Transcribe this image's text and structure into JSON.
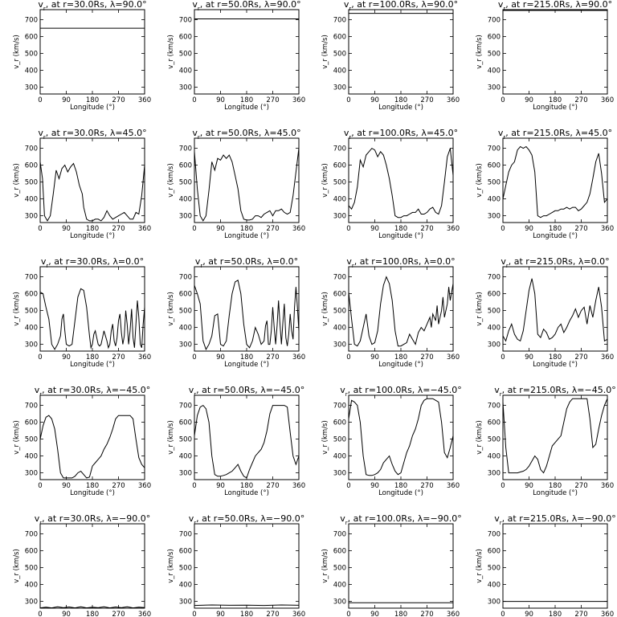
{
  "panel_defaults": {
    "xlabel": "Longitude (°)",
    "ylabel": "v_r (km/s)",
    "xlim": [
      0,
      360
    ],
    "ylim": [
      260,
      760
    ],
    "xticks": [
      0,
      90,
      180,
      270,
      360
    ],
    "yticks": [
      300,
      400,
      500,
      600,
      700
    ]
  },
  "chart_data": [
    {
      "type": "line",
      "title": "vr at r=30.0Rs, λ=90.0°",
      "x": [
        0,
        360
      ],
      "y": [
        650,
        650
      ]
    },
    {
      "type": "line",
      "title": "vr at r=50.0Rs, λ=90.0°",
      "x": [
        0,
        360
      ],
      "y": [
        705,
        705
      ]
    },
    {
      "type": "line",
      "title": "vr at r=100.0Rs, λ=90.0°",
      "x": [
        0,
        360
      ],
      "y": [
        738,
        738
      ]
    },
    {
      "type": "line",
      "title": "vr at r=215.0Rs, λ=90.0°",
      "x": [
        0,
        360
      ],
      "y": [
        755,
        755
      ]
    },
    {
      "type": "line",
      "title": "vr at r=30.0Rs, λ=45.0°",
      "x": [
        0,
        8,
        15,
        25,
        35,
        45,
        55,
        65,
        75,
        85,
        95,
        105,
        115,
        125,
        135,
        145,
        150,
        160,
        170,
        180,
        190,
        200,
        210,
        220,
        230,
        240,
        250,
        260,
        270,
        280,
        290,
        300,
        310,
        320,
        330,
        340,
        350,
        360
      ],
      "y": [
        620,
        520,
        300,
        270,
        300,
        430,
        570,
        520,
        580,
        600,
        560,
        590,
        610,
        560,
        480,
        430,
        350,
        280,
        270,
        270,
        280,
        280,
        270,
        290,
        330,
        300,
        280,
        290,
        300,
        310,
        320,
        300,
        280,
        280,
        320,
        310,
        420,
        600
      ]
    },
    {
      "type": "line",
      "title": "vr at r=50.0Rs, λ=45.0°",
      "x": [
        0,
        10,
        20,
        30,
        40,
        50,
        60,
        70,
        80,
        90,
        100,
        110,
        120,
        130,
        140,
        150,
        160,
        170,
        180,
        190,
        200,
        210,
        220,
        230,
        240,
        250,
        260,
        270,
        280,
        290,
        300,
        310,
        320,
        330,
        340,
        350,
        360
      ],
      "y": [
        680,
        460,
        300,
        270,
        300,
        450,
        620,
        570,
        640,
        630,
        660,
        640,
        660,
        620,
        540,
        460,
        330,
        280,
        275,
        275,
        280,
        300,
        300,
        290,
        310,
        320,
        330,
        300,
        330,
        330,
        340,
        320,
        310,
        320,
        420,
        560,
        700
      ]
    },
    {
      "type": "line",
      "title": "vr at r=100.0Rs, λ=45.0°",
      "x": [
        0,
        10,
        20,
        30,
        40,
        50,
        60,
        70,
        80,
        90,
        100,
        110,
        120,
        130,
        140,
        150,
        160,
        170,
        180,
        190,
        200,
        210,
        220,
        230,
        240,
        250,
        260,
        270,
        280,
        290,
        300,
        310,
        320,
        330,
        340,
        350,
        360
      ],
      "y": [
        360,
        340,
        380,
        470,
        630,
        590,
        660,
        680,
        700,
        690,
        650,
        680,
        660,
        600,
        520,
        420,
        300,
        290,
        290,
        300,
        300,
        310,
        320,
        320,
        340,
        310,
        310,
        320,
        340,
        350,
        320,
        310,
        360,
        500,
        650,
        700,
        540
      ]
    },
    {
      "type": "line",
      "title": "vr at r=215.0Rs, λ=45.0°",
      "x": [
        0,
        10,
        20,
        30,
        40,
        50,
        60,
        70,
        80,
        90,
        100,
        110,
        120,
        130,
        140,
        150,
        160,
        170,
        180,
        190,
        200,
        210,
        220,
        230,
        240,
        250,
        260,
        270,
        280,
        290,
        300,
        310,
        320,
        330,
        340,
        350,
        360
      ],
      "y": [
        400,
        480,
        560,
        600,
        620,
        690,
        710,
        700,
        710,
        690,
        660,
        560,
        300,
        290,
        300,
        300,
        310,
        320,
        330,
        330,
        340,
        340,
        350,
        340,
        350,
        350,
        330,
        340,
        360,
        380,
        430,
        520,
        620,
        670,
        550,
        380,
        400
      ]
    },
    {
      "type": "line",
      "title": "vr at r=30.0Rs, λ=0.0°",
      "x": [
        0,
        10,
        20,
        30,
        40,
        50,
        60,
        70,
        75,
        80,
        85,
        90,
        100,
        110,
        120,
        130,
        140,
        150,
        160,
        170,
        175,
        180,
        185,
        190,
        200,
        205,
        210,
        215,
        220,
        230,
        235,
        240,
        245,
        250,
        255,
        260,
        265,
        270,
        275,
        280,
        285,
        290,
        295,
        300,
        305,
        310,
        315,
        320,
        325,
        330,
        335,
        340,
        345,
        350,
        355,
        360
      ],
      "y": [
        610,
        600,
        520,
        450,
        300,
        270,
        300,
        350,
        450,
        480,
        380,
        300,
        290,
        300,
        440,
        580,
        630,
        620,
        520,
        350,
        280,
        300,
        360,
        380,
        300,
        290,
        300,
        340,
        380,
        320,
        280,
        300,
        380,
        420,
        320,
        290,
        340,
        440,
        480,
        370,
        300,
        350,
        500,
        420,
        300,
        380,
        510,
        340,
        280,
        420,
        560,
        460,
        300,
        280,
        420,
        520
      ]
    },
    {
      "type": "line",
      "title": "vr at r=50.0Rs, λ=0.0°",
      "x": [
        0,
        10,
        20,
        30,
        40,
        50,
        60,
        70,
        80,
        90,
        100,
        110,
        120,
        130,
        140,
        150,
        160,
        170,
        180,
        190,
        200,
        210,
        220,
        230,
        240,
        245,
        250,
        255,
        260,
        265,
        270,
        275,
        280,
        285,
        290,
        295,
        300,
        305,
        310,
        315,
        320,
        325,
        330,
        335,
        340,
        345,
        350,
        355,
        360
      ],
      "y": [
        650,
        600,
        540,
        320,
        270,
        300,
        350,
        470,
        480,
        300,
        290,
        320,
        470,
        600,
        670,
        680,
        600,
        420,
        300,
        280,
        320,
        400,
        360,
        300,
        320,
        410,
        440,
        300,
        300,
        380,
        520,
        400,
        300,
        410,
        560,
        420,
        300,
        430,
        540,
        340,
        290,
        360,
        480,
        380,
        330,
        520,
        640,
        520,
        380
      ]
    },
    {
      "type": "line",
      "title": "vr at r=100.0Rs, λ=0.0°",
      "x": [
        0,
        10,
        20,
        30,
        40,
        50,
        60,
        70,
        80,
        90,
        100,
        110,
        120,
        130,
        140,
        150,
        160,
        170,
        180,
        190,
        200,
        210,
        220,
        230,
        240,
        250,
        260,
        270,
        280,
        285,
        290,
        300,
        305,
        310,
        320,
        325,
        330,
        340,
        345,
        350,
        360
      ],
      "y": [
        610,
        450,
        300,
        290,
        320,
        400,
        480,
        350,
        300,
        310,
        380,
        540,
        650,
        700,
        660,
        560,
        380,
        290,
        290,
        300,
        310,
        360,
        330,
        300,
        370,
        400,
        380,
        420,
        460,
        400,
        480,
        440,
        530,
        420,
        500,
        580,
        460,
        540,
        640,
        560,
        660
      ]
    },
    {
      "type": "line",
      "title": "vr at r=215.0Rs, λ=0.0°",
      "x": [
        0,
        10,
        20,
        30,
        40,
        50,
        60,
        70,
        80,
        90,
        100,
        110,
        120,
        130,
        140,
        150,
        160,
        170,
        180,
        190,
        200,
        210,
        220,
        230,
        240,
        250,
        260,
        270,
        280,
        290,
        300,
        310,
        320,
        330,
        340,
        350,
        360
      ],
      "y": [
        350,
        320,
        380,
        420,
        360,
        330,
        320,
        380,
        500,
        620,
        690,
        600,
        360,
        340,
        390,
        370,
        330,
        340,
        360,
        400,
        420,
        370,
        400,
        440,
        470,
        510,
        460,
        500,
        520,
        420,
        530,
        460,
        560,
        640,
        520,
        320,
        330
      ]
    },
    {
      "type": "line",
      "title": "vr at r=30.0Rs, λ=-45.0°",
      "x": [
        0,
        10,
        20,
        30,
        40,
        50,
        60,
        70,
        80,
        90,
        100,
        110,
        120,
        130,
        140,
        150,
        160,
        170,
        180,
        190,
        200,
        210,
        220,
        230,
        240,
        250,
        260,
        270,
        280,
        290,
        300,
        310,
        320,
        330,
        340,
        350,
        360
      ],
      "y": [
        500,
        580,
        630,
        640,
        620,
        560,
        440,
        300,
        270,
        270,
        270,
        270,
        280,
        300,
        310,
        290,
        270,
        275,
        340,
        360,
        380,
        400,
        440,
        470,
        510,
        560,
        620,
        640,
        640,
        640,
        640,
        640,
        620,
        500,
        390,
        350,
        330
      ]
    },
    {
      "type": "line",
      "title": "vr at r=50.0Rs, λ=-45.0°",
      "x": [
        0,
        10,
        20,
        30,
        40,
        50,
        60,
        70,
        80,
        90,
        100,
        110,
        120,
        130,
        140,
        150,
        160,
        170,
        180,
        190,
        200,
        210,
        220,
        230,
        240,
        250,
        260,
        270,
        280,
        290,
        300,
        310,
        320,
        330,
        340,
        350,
        360
      ],
      "y": [
        520,
        640,
        690,
        700,
        680,
        600,
        400,
        290,
        280,
        280,
        285,
        290,
        300,
        310,
        330,
        350,
        310,
        280,
        270,
        320,
        360,
        400,
        420,
        440,
        480,
        550,
        650,
        700,
        700,
        700,
        700,
        700,
        690,
        540,
        400,
        350,
        400
      ]
    },
    {
      "type": "line",
      "title": "vr at r=100.0Rs, λ=-45.0°",
      "x": [
        0,
        10,
        20,
        30,
        40,
        50,
        60,
        70,
        80,
        90,
        100,
        110,
        120,
        130,
        140,
        150,
        160,
        170,
        180,
        190,
        200,
        210,
        220,
        230,
        240,
        250,
        260,
        270,
        280,
        290,
        300,
        310,
        320,
        330,
        340,
        350,
        360
      ],
      "y": [
        620,
        730,
        720,
        700,
        600,
        400,
        290,
        285,
        285,
        290,
        300,
        320,
        360,
        380,
        400,
        350,
        310,
        290,
        300,
        360,
        420,
        460,
        520,
        560,
        620,
        700,
        730,
        740,
        740,
        740,
        730,
        720,
        600,
        420,
        390,
        450,
        520
      ]
    },
    {
      "type": "line",
      "title": "vr at r=215.0Rs, λ=-45.0°",
      "x": [
        0,
        10,
        20,
        30,
        40,
        50,
        60,
        70,
        80,
        90,
        100,
        110,
        120,
        130,
        140,
        150,
        160,
        170,
        180,
        190,
        200,
        210,
        220,
        230,
        240,
        250,
        260,
        270,
        280,
        290,
        300,
        310,
        320,
        330,
        340,
        350,
        360
      ],
      "y": [
        720,
        450,
        300,
        300,
        300,
        300,
        305,
        310,
        320,
        340,
        370,
        400,
        380,
        320,
        300,
        340,
        400,
        460,
        480,
        500,
        520,
        600,
        680,
        720,
        740,
        740,
        740,
        740,
        740,
        740,
        620,
        450,
        470,
        560,
        640,
        700,
        740
      ]
    },
    {
      "type": "line",
      "title": "vr at r=30.0Rs, λ=-90.0°",
      "x": [
        0,
        20,
        40,
        60,
        80,
        100,
        120,
        140,
        160,
        180,
        200,
        220,
        240,
        260,
        280,
        300,
        320,
        340,
        360
      ],
      "y": [
        262,
        266,
        262,
        268,
        263,
        267,
        262,
        268,
        262,
        266,
        263,
        268,
        262,
        267,
        263,
        268,
        262,
        266,
        264
      ]
    },
    {
      "type": "line",
      "title": "vr at r=50.0Rs, λ=-90.0°",
      "x": [
        0,
        60,
        120,
        180,
        240,
        300,
        360
      ],
      "y": [
        276,
        279,
        277,
        278,
        276,
        279,
        277
      ]
    },
    {
      "type": "line",
      "title": "vr at r=100.0Rs, λ=-90.0°",
      "x": [
        0,
        360
      ],
      "y": [
        292,
        292
      ]
    },
    {
      "type": "line",
      "title": "vr at r=215.0Rs, λ=-90.0°",
      "x": [
        0,
        360
      ],
      "y": [
        300,
        300
      ]
    }
  ],
  "panels": [
    {
      "title_pre": "v",
      "title_sub": "r",
      "title_post": ", at r=30.0Rs,  λ=90.0°"
    },
    {
      "title_pre": "v",
      "title_sub": "r",
      "title_post": ", at r=50.0Rs,  λ=90.0°"
    },
    {
      "title_pre": "v",
      "title_sub": "r",
      "title_post": ", at r=100.0Rs,  λ=90.0°"
    },
    {
      "title_pre": "v",
      "title_sub": "r",
      "title_post": ", at r=215.0Rs,  λ=90.0°"
    },
    {
      "title_pre": "v",
      "title_sub": "r",
      "title_post": ", at r=30.0Rs,  λ=45.0°"
    },
    {
      "title_pre": "v",
      "title_sub": "r",
      "title_post": ", at r=50.0Rs,  λ=45.0°"
    },
    {
      "title_pre": "v",
      "title_sub": "r",
      "title_post": ", at r=100.0Rs,  λ=45.0°"
    },
    {
      "title_pre": "v",
      "title_sub": "r",
      "title_post": ", at r=215.0Rs,  λ=45.0°"
    },
    {
      "title_pre": "v",
      "title_sub": "r",
      "title_post": ", at r=30.0Rs,  λ=0.0°"
    },
    {
      "title_pre": "v",
      "title_sub": "r",
      "title_post": ", at r=50.0Rs,  λ=0.0°"
    },
    {
      "title_pre": "v",
      "title_sub": "r",
      "title_post": ", at r=100.0Rs,  λ=0.0°"
    },
    {
      "title_pre": "v",
      "title_sub": "r",
      "title_post": ", at r=215.0Rs,  λ=0.0°"
    },
    {
      "title_pre": "v",
      "title_sub": "r",
      "title_post": ", at r=30.0Rs,  λ=−45.0°"
    },
    {
      "title_pre": "v",
      "title_sub": "r",
      "title_post": ", at r=50.0Rs,  λ=−45.0°"
    },
    {
      "title_pre": "v",
      "title_sub": "r",
      "title_post": ", at r=100.0Rs,  λ=−45.0°"
    },
    {
      "title_pre": "v",
      "title_sub": "r",
      "title_post": ", at r=215.0Rs,  λ=−45.0°"
    },
    {
      "title_pre": "v",
      "title_sub": "r",
      "title_post": ", at r=30.0Rs,  λ=−90.0°"
    },
    {
      "title_pre": "v",
      "title_sub": "r",
      "title_post": ", at r=50.0Rs,  λ=−90.0°"
    },
    {
      "title_pre": "v",
      "title_sub": "r",
      "title_post": ", at r=100.0Rs,  λ=−90.0°"
    },
    {
      "title_pre": "v",
      "title_sub": "r",
      "title_post": ", at r=215.0Rs,  λ=−90.0°"
    }
  ]
}
